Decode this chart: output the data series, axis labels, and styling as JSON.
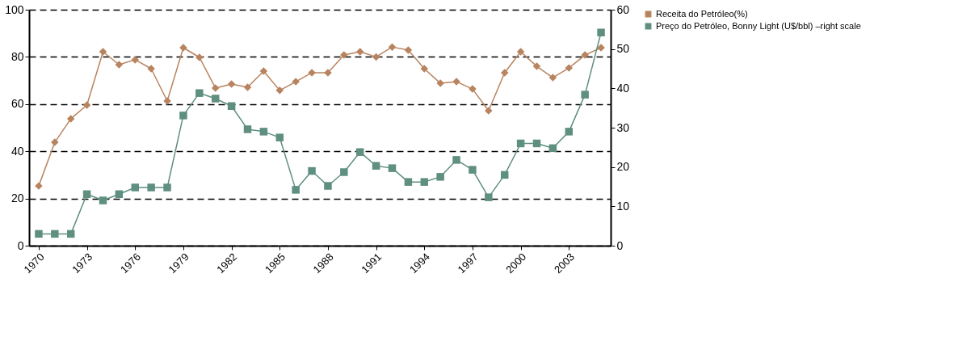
{
  "chart_data": {
    "type": "line",
    "x": [
      1970,
      1971,
      1972,
      1973,
      1974,
      1975,
      1976,
      1977,
      1978,
      1979,
      1980,
      1981,
      1982,
      1983,
      1984,
      1985,
      1986,
      1987,
      1988,
      1989,
      1990,
      1991,
      1992,
      1993,
      1994,
      1995,
      1996,
      1997,
      1998,
      1999,
      2000,
      2001,
      2002,
      2003,
      2004,
      2005
    ],
    "series": [
      {
        "name": "Receita do Petróleo(%)",
        "color": "#b8845f",
        "marker": "diamond",
        "values": [
          25.3,
          43.8,
          53.8,
          59.6,
          82.2,
          76.7,
          78.8,
          75,
          61.3,
          83.9,
          79.8,
          66.8,
          68.5,
          67.1,
          74,
          65.8,
          69.5,
          73.3,
          73.3,
          80.8,
          82.2,
          80,
          84.2,
          82.9,
          75,
          68.8,
          69.5,
          66.4,
          57.2,
          73.3,
          82.2,
          76,
          71.2,
          75.3,
          80.8,
          83.9
        ]
      },
      {
        "name": "Preço do Petróleo, Bonny Light (U$/bbl) –right scale",
        "color": "#5f8f80",
        "marker": "square",
        "axis": "y2",
        "values": [
          3,
          3,
          3,
          13.1,
          11.5,
          13.1,
          14.8,
          14.8,
          14.8,
          33.1,
          38.8,
          37.4,
          35.5,
          29.6,
          29,
          27.5,
          14.2,
          19,
          15.2,
          18.7,
          23.8,
          20.3,
          19.7,
          16.2,
          16.2,
          17.5,
          21.8,
          19.3,
          12.3,
          18,
          26,
          26,
          24.8,
          29,
          38.4,
          54.2
        ]
      }
    ],
    "xlim": [
      1969.4,
      2005.6
    ],
    "xticks": [
      1970,
      1973,
      1976,
      1979,
      1982,
      1985,
      1988,
      1991,
      1994,
      1997,
      2000,
      2003
    ],
    "ylim": [
      0,
      100
    ],
    "yticks": [
      0,
      20,
      40,
      60,
      80,
      100
    ],
    "y2lim": [
      0,
      60
    ],
    "y2ticks": [
      0,
      10,
      20,
      30,
      40,
      50,
      60
    ],
    "grid": "y",
    "legend": "right"
  }
}
